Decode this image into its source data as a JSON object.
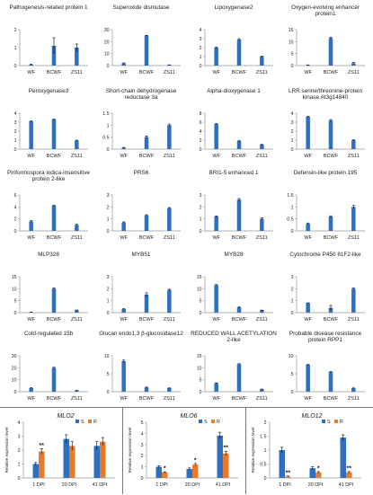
{
  "chart_data": [
    {
      "type": "bar",
      "title": "Pathogenesis-related protein 1",
      "categories": [
        "WF",
        "BCWF",
        "ZS11"
      ],
      "values": [
        0.05,
        1.1,
        1.0
      ],
      "errors": [
        0.03,
        0.45,
        0.2
      ],
      "ylim": [
        0,
        2
      ],
      "yticks": [
        "0",
        "1",
        "2"
      ],
      "color": "#2f6fbd"
    },
    {
      "type": "bar",
      "title": "Superoxide dismutase",
      "categories": [
        "WF",
        "BCWF",
        "ZS11"
      ],
      "values": [
        1.8,
        25,
        0.5
      ],
      "errors": [
        0.4,
        0.3,
        0.1
      ],
      "ylim": [
        0,
        30
      ],
      "yticks": [
        "0",
        "10",
        "20",
        "30"
      ],
      "color": "#2f6fbd"
    },
    {
      "type": "bar",
      "title": "Lipoxygenase2",
      "categories": [
        "WF",
        "BCWF",
        "ZS11"
      ],
      "values": [
        2.0,
        2.9,
        1.0
      ],
      "errors": [
        0.05,
        0.1,
        0.05
      ],
      "ylim": [
        0,
        4
      ],
      "yticks": [
        "0",
        "1",
        "2",
        "3",
        "4"
      ],
      "color": "#2f6fbd"
    },
    {
      "type": "bar",
      "title": "Oxygen-evolving enhancer protein1",
      "categories": [
        "WF",
        "BCWF",
        "ZS11"
      ],
      "values": [
        0.2,
        11.5,
        1.0
      ],
      "errors": [
        0.1,
        0.4,
        0.3
      ],
      "ylim": [
        0,
        15
      ],
      "yticks": [
        "0",
        "5",
        "10",
        "15"
      ],
      "color": "#2f6fbd"
    },
    {
      "type": "bar",
      "title": "Peroxygenase3",
      "categories": [
        "WF",
        "BCWF",
        "ZS11"
      ],
      "values": [
        3.1,
        3.3,
        0.95
      ],
      "errors": [
        0.05,
        0.05,
        0.05
      ],
      "ylim": [
        0,
        4
      ],
      "yticks": [
        "0",
        "1",
        "2",
        "3",
        "4"
      ],
      "color": "#2f6fbd"
    },
    {
      "type": "bar",
      "title": "Short-chain dehydrogenase reductase 3a",
      "categories": [
        "WF",
        "BCWF",
        "ZS11"
      ],
      "values": [
        0.05,
        0.5,
        1.0
      ],
      "errors": [
        0.02,
        0.05,
        0.05
      ],
      "ylim": [
        0,
        1.5
      ],
      "yticks": [
        "0",
        "0.5",
        "1",
        "1.5"
      ],
      "color": "#2f6fbd"
    },
    {
      "type": "bar",
      "title": "Alpha-dioxygenase 1",
      "categories": [
        "WF",
        "BCWF",
        "ZS11"
      ],
      "values": [
        5.6,
        1.8,
        1.0
      ],
      "errors": [
        0.1,
        0.1,
        0.05
      ],
      "ylim": [
        0,
        8
      ],
      "yticks": [
        "0",
        "2",
        "4",
        "6",
        "8"
      ],
      "color": "#2f6fbd"
    },
    {
      "type": "bar",
      "title": "LRR serine/threonine-protein kinase At3g14840",
      "categories": [
        "WF",
        "BCWF",
        "ZS11"
      ],
      "values": [
        3.6,
        3.2,
        1.0
      ],
      "errors": [
        0.05,
        0.1,
        0.05
      ],
      "ylim": [
        0,
        4
      ],
      "yticks": [
        "0",
        "1",
        "2",
        "3",
        "4"
      ],
      "color": "#2f6fbd"
    },
    {
      "type": "bar",
      "title": "Piriformospora indica-insensitive protein 2-like",
      "categories": [
        "WF",
        "BCWF",
        "ZS11"
      ],
      "values": [
        1.6,
        4.2,
        1.0
      ],
      "errors": [
        0.1,
        0.1,
        0.1
      ],
      "ylim": [
        0,
        6
      ],
      "yticks": [
        "0",
        "2",
        "4",
        "6"
      ],
      "color": "#2f6fbd"
    },
    {
      "type": "bar",
      "title": "PRS6",
      "categories": [
        "WF",
        "BCWF",
        "ZS11"
      ],
      "values": [
        0.7,
        1.3,
        1.9
      ],
      "errors": [
        0.05,
        0.05,
        0.05
      ],
      "ylim": [
        0,
        3
      ],
      "yticks": [
        "0",
        "1",
        "2",
        "3"
      ],
      "color": "#2f6fbd"
    },
    {
      "type": "bar",
      "title": "BRI1-5 enhanced 1",
      "categories": [
        "WF",
        "BCWF",
        "ZS11"
      ],
      "values": [
        1.2,
        2.6,
        1.0
      ],
      "errors": [
        0.05,
        0.1,
        0.1
      ],
      "ylim": [
        0,
        3
      ],
      "yticks": [
        "0",
        "1",
        "2",
        "3"
      ],
      "color": "#2f6fbd"
    },
    {
      "type": "bar",
      "title": "Defensin-like protein 195",
      "categories": [
        "WF",
        "BCWF",
        "ZS11"
      ],
      "values": [
        0.3,
        0.6,
        1.0
      ],
      "errors": [
        0.03,
        0.03,
        0.06
      ],
      "ylim": [
        0,
        1.5
      ],
      "yticks": [
        "0",
        "0.5",
        "1",
        "1.5"
      ],
      "color": "#2f6fbd"
    },
    {
      "type": "bar",
      "title": "MLP328",
      "categories": [
        "WF",
        "BCWF",
        "ZS11"
      ],
      "values": [
        0.2,
        10.0,
        1.0
      ],
      "errors": [
        0.05,
        0.3,
        0.1
      ],
      "ylim": [
        0,
        15
      ],
      "yticks": [
        "0",
        "5",
        "10",
        "15"
      ],
      "color": "#2f6fbd"
    },
    {
      "type": "bar",
      "title": "MYB51",
      "categories": [
        "WF",
        "BCWF",
        "ZS11"
      ],
      "values": [
        0.3,
        1.5,
        1.9
      ],
      "errors": [
        0.03,
        0.15,
        0.05
      ],
      "ylim": [
        0,
        3
      ],
      "yticks": [
        "0",
        "1",
        "2",
        "3"
      ],
      "color": "#2f6fbd"
    },
    {
      "type": "bar",
      "title": "MYB28",
      "categories": [
        "WF",
        "BCWF",
        "ZS11"
      ],
      "values": [
        11.5,
        2.2,
        1.0
      ],
      "errors": [
        0.2,
        0.2,
        0.05
      ],
      "ylim": [
        0,
        15
      ],
      "yticks": [
        "0",
        "5",
        "10",
        "15"
      ],
      "color": "#2f6fbd"
    },
    {
      "type": "bar",
      "title": "Cytochrome P450 81F2-like",
      "categories": [
        "WF",
        "BCWF",
        "ZS11"
      ],
      "values": [
        0.8,
        0.4,
        2.0
      ],
      "errors": [
        0.02,
        0.2,
        0.05
      ],
      "ylim": [
        0,
        3
      ],
      "yticks": [
        "0",
        "1",
        "2",
        "3"
      ],
      "color": "#2f6fbd"
    },
    {
      "type": "bar",
      "title": "Cold-regulated 15b",
      "categories": [
        "WF",
        "BCWF",
        "ZS11"
      ],
      "values": [
        3.0,
        20.0,
        1.0
      ],
      "errors": [
        0.3,
        0.4,
        0.1
      ],
      "ylim": [
        0,
        30
      ],
      "yticks": [
        "0",
        "10",
        "20",
        "30"
      ],
      "color": "#2f6fbd"
    },
    {
      "type": "bar",
      "title": "Glucan endo1,3 β-glucosidase12",
      "categories": [
        "WF",
        "BCWF",
        "ZS11"
      ],
      "values": [
        8.5,
        1.2,
        1.0
      ],
      "errors": [
        0.3,
        0.1,
        0.05
      ],
      "ylim": [
        0,
        10
      ],
      "yticks": [
        "0",
        "5",
        "10"
      ],
      "color": "#2f6fbd"
    },
    {
      "type": "bar",
      "title": "REDUCED WALL ACETYLATION 2-like",
      "categories": [
        "WF",
        "BCWF",
        "ZS11"
      ],
      "values": [
        3.5,
        11.5,
        1.0
      ],
      "errors": [
        0.2,
        0.2,
        0.1
      ],
      "ylim": [
        0,
        15
      ],
      "yticks": [
        "0",
        "5",
        "10",
        "15"
      ],
      "color": "#2f6fbd"
    },
    {
      "type": "bar",
      "title": "Probable disease resistance protein RPP1",
      "categories": [
        "WF",
        "BCWF",
        "ZS11"
      ],
      "values": [
        7.5,
        5.5,
        1.0
      ],
      "errors": [
        0.1,
        0.1,
        0.05
      ],
      "ylim": [
        0,
        10
      ],
      "yticks": [
        "0",
        "5",
        "10"
      ],
      "color": "#2f6fbd"
    },
    {
      "type": "bar",
      "title": "MLO2",
      "ylabel": "Relative expression level",
      "categories": [
        "1 DPI",
        "20 DPI",
        "41 DPI"
      ],
      "ylim": [
        0,
        4
      ],
      "yticks": [
        "0",
        "1",
        "2",
        "3",
        "4"
      ],
      "series": [
        {
          "name": "S",
          "color": "#2f6fbd",
          "values": [
            1.0,
            2.8,
            2.3
          ],
          "errors": [
            0.1,
            0.3,
            0.3
          ]
        },
        {
          "name": "R",
          "color": "#e87a2a",
          "values": [
            1.9,
            2.3,
            2.6
          ],
          "errors": [
            0.2,
            0.3,
            0.3
          ]
        }
      ],
      "annotations": [
        {
          "category": "1 DPI",
          "text": "**"
        }
      ]
    },
    {
      "type": "bar",
      "title": "MLO6",
      "ylabel": "Relative expression level",
      "categories": [
        "1 DPI",
        "20 DPI",
        "41 DPI"
      ],
      "ylim": [
        0,
        5
      ],
      "yticks": [
        "0",
        "1",
        "2",
        "3",
        "4",
        "5"
      ],
      "series": [
        {
          "name": "S",
          "color": "#2f6fbd",
          "values": [
            1.0,
            0.8,
            3.8
          ],
          "errors": [
            0.1,
            0.1,
            0.3
          ]
        },
        {
          "name": "R",
          "color": "#e87a2a",
          "values": [
            0.5,
            1.2,
            2.2
          ],
          "errors": [
            0.05,
            0.1,
            0.2
          ]
        }
      ],
      "annotations": [
        {
          "category": "1 DPI",
          "text": "*"
        },
        {
          "category": "20 DPI",
          "text": "*"
        },
        {
          "category": "41 DPI",
          "text": "**"
        }
      ]
    },
    {
      "type": "bar",
      "title": "MLO12",
      "ylabel": "Relative expression level",
      "categories": [
        "1 DPI",
        "20 DPI",
        "41 DPI"
      ],
      "ylim": [
        0,
        2
      ],
      "yticks": [
        "0",
        "0.5",
        "1",
        "1.5",
        "2"
      ],
      "series": [
        {
          "name": "S",
          "color": "#2f6fbd",
          "values": [
            1.0,
            0.35,
            1.45
          ],
          "errors": [
            0.1,
            0.05,
            0.1
          ]
        },
        {
          "name": "R",
          "color": "#e87a2a",
          "values": [
            0.05,
            0.2,
            0.2
          ],
          "errors": [
            0.02,
            0.03,
            0.03
          ]
        }
      ],
      "annotations": [
        {
          "category": "1 DPI",
          "text": "**"
        },
        {
          "category": "20 DPI",
          "text": "*"
        },
        {
          "category": "41 DPI",
          "text": "**"
        }
      ]
    }
  ]
}
